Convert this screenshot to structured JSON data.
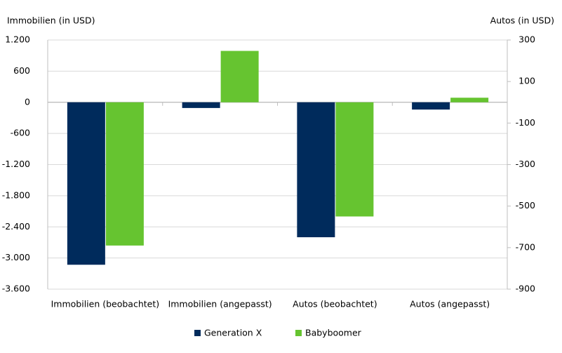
{
  "chart_data": {
    "type": "bar",
    "y_axis_label": "Immobilien (in USD)",
    "y2_axis_label": "Autos (in USD)",
    "categories": [
      "Immobilien (beobachtet)",
      "Immobilien (angepasst)",
      "Autos (beobachtet)",
      "Autos (angepasst)"
    ],
    "category_axes": [
      "y",
      "y",
      "y2",
      "y2"
    ],
    "series": [
      {
        "name": "Generation X",
        "color": "#002b5c",
        "values": [
          -3130,
          -110,
          -650,
          -35
        ]
      },
      {
        "name": "Babyboomer",
        "color": "#66c430",
        "values": [
          -2760,
          990,
          -550,
          22
        ]
      }
    ],
    "ylim": [
      -3600,
      1200
    ],
    "yticks": [
      {
        "value": 1200,
        "label": "1.200"
      },
      600,
      0,
      -600,
      {
        "value": -1200,
        "label": "-1.200"
      },
      {
        "value": -1800,
        "label": "-1.800"
      },
      {
        "value": -2400,
        "label": "-2.400"
      },
      {
        "value": -3000,
        "label": "-3.000"
      },
      {
        "value": -3600,
        "label": "-3.600"
      }
    ],
    "y2lim": [
      -900,
      300
    ],
    "y2ticks": [
      300,
      100,
      -100,
      -300,
      -500,
      -700,
      -900
    ],
    "grid": true,
    "legend": "bottom"
  }
}
